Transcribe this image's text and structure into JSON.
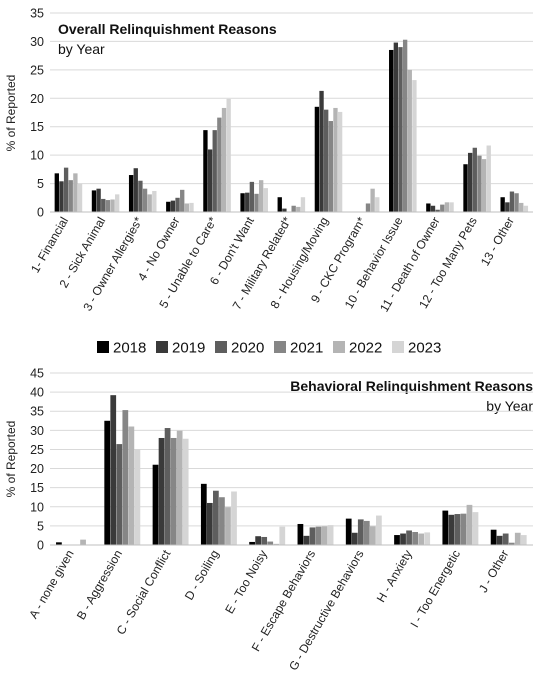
{
  "chart_data": [
    {
      "type": "bar",
      "title": "Overall Relinquishment Reasons",
      "subtitle": "by Year",
      "ylabel": "% of Reported",
      "ylim": [
        0,
        35
      ],
      "yticks": [
        0,
        5,
        10,
        15,
        20,
        25,
        30,
        35
      ],
      "grid": true,
      "legend": "between charts",
      "categories": [
        "1- Financial",
        "2 - Sick Animal",
        "3 - Owner Allergies*",
        "4 - No Owner",
        "5 - Unable to Care*",
        "6 - Don't Want",
        "7 - Military Related*",
        "8 - Housing/Moving",
        "9 - CKC Program*",
        "10 - Behavior Issue",
        "11 - Death of Owner",
        "12 - Too Many Pets",
        "13 - Other"
      ],
      "series": [
        {
          "name": "2018",
          "color": "#000000",
          "values": [
            6.8,
            3.8,
            6.5,
            1.8,
            14.4,
            3.3,
            2.6,
            18.5,
            0,
            28.5,
            1.5,
            8.4,
            2.6
          ]
        },
        {
          "name": "2019",
          "color": "#3a3a3a",
          "values": [
            5.4,
            4.1,
            7.7,
            2.0,
            11.0,
            3.4,
            0.6,
            21.3,
            0,
            29.8,
            1.1,
            10.4,
            1.7
          ]
        },
        {
          "name": "2020",
          "color": "#5e5e5e",
          "values": [
            7.8,
            2.3,
            5.5,
            2.5,
            14.4,
            5.3,
            0,
            18.0,
            0,
            29.0,
            0.4,
            11.3,
            3.6
          ]
        },
        {
          "name": "2021",
          "color": "#868686",
          "values": [
            5.6,
            2.1,
            4.1,
            3.9,
            16.6,
            3.2,
            1.1,
            16.0,
            1.5,
            30.3,
            1.3,
            9.9,
            3.3
          ]
        },
        {
          "name": "2022",
          "color": "#b4b4b4",
          "values": [
            6.8,
            2.2,
            3.1,
            1.5,
            18.3,
            5.6,
            0.9,
            18.3,
            4.1,
            25.0,
            1.7,
            9.3,
            1.6
          ]
        },
        {
          "name": "2023",
          "color": "#d5d5d5",
          "values": [
            5.0,
            3.1,
            3.7,
            1.6,
            19.9,
            4.2,
            2.6,
            17.6,
            2.6,
            23.2,
            1.7,
            11.7,
            1.1
          ]
        }
      ]
    },
    {
      "type": "bar",
      "title": "Behavioral Relinquishment Reasons",
      "subtitle": "by Year",
      "ylabel": "% of Reported",
      "ylim": [
        0,
        45
      ],
      "yticks": [
        0,
        5,
        10,
        15,
        20,
        25,
        30,
        35,
        40,
        45
      ],
      "grid": true,
      "categories": [
        "A - none given",
        "B - Aggression",
        "C - Social Conflict",
        "D - Soiling",
        "E - Too Noisy",
        "F - Escape Behaviors",
        "G - Destructive Behaviors",
        "H - Anxiety",
        "I - Too Energetic",
        "J - Other"
      ],
      "series": [
        {
          "name": "2018",
          "color": "#000000",
          "values": [
            0.7,
            32.5,
            21.0,
            16.0,
            0.8,
            5.5,
            6.9,
            2.6,
            9.0,
            4.0
          ]
        },
        {
          "name": "2019",
          "color": "#3a3a3a",
          "values": [
            0,
            39.2,
            28.0,
            11.0,
            2.3,
            2.4,
            3.2,
            3.0,
            7.9,
            2.4
          ]
        },
        {
          "name": "2020",
          "color": "#5e5e5e",
          "values": [
            0,
            26.4,
            30.6,
            14.2,
            2.1,
            4.6,
            6.7,
            3.8,
            8.1,
            3.0
          ]
        },
        {
          "name": "2021",
          "color": "#868686",
          "values": [
            0,
            35.3,
            28.0,
            12.5,
            0.9,
            4.8,
            6.3,
            3.4,
            8.2,
            0.6
          ]
        },
        {
          "name": "2022",
          "color": "#b4b4b4",
          "values": [
            1.4,
            31.0,
            29.9,
            9.9,
            0.3,
            4.9,
            4.9,
            3.0,
            10.5,
            3.2
          ]
        },
        {
          "name": "2023",
          "color": "#d5d5d5",
          "values": [
            0,
            25.0,
            27.8,
            14.0,
            4.8,
            5.2,
            7.7,
            3.3,
            8.6,
            2.6
          ]
        }
      ]
    }
  ]
}
